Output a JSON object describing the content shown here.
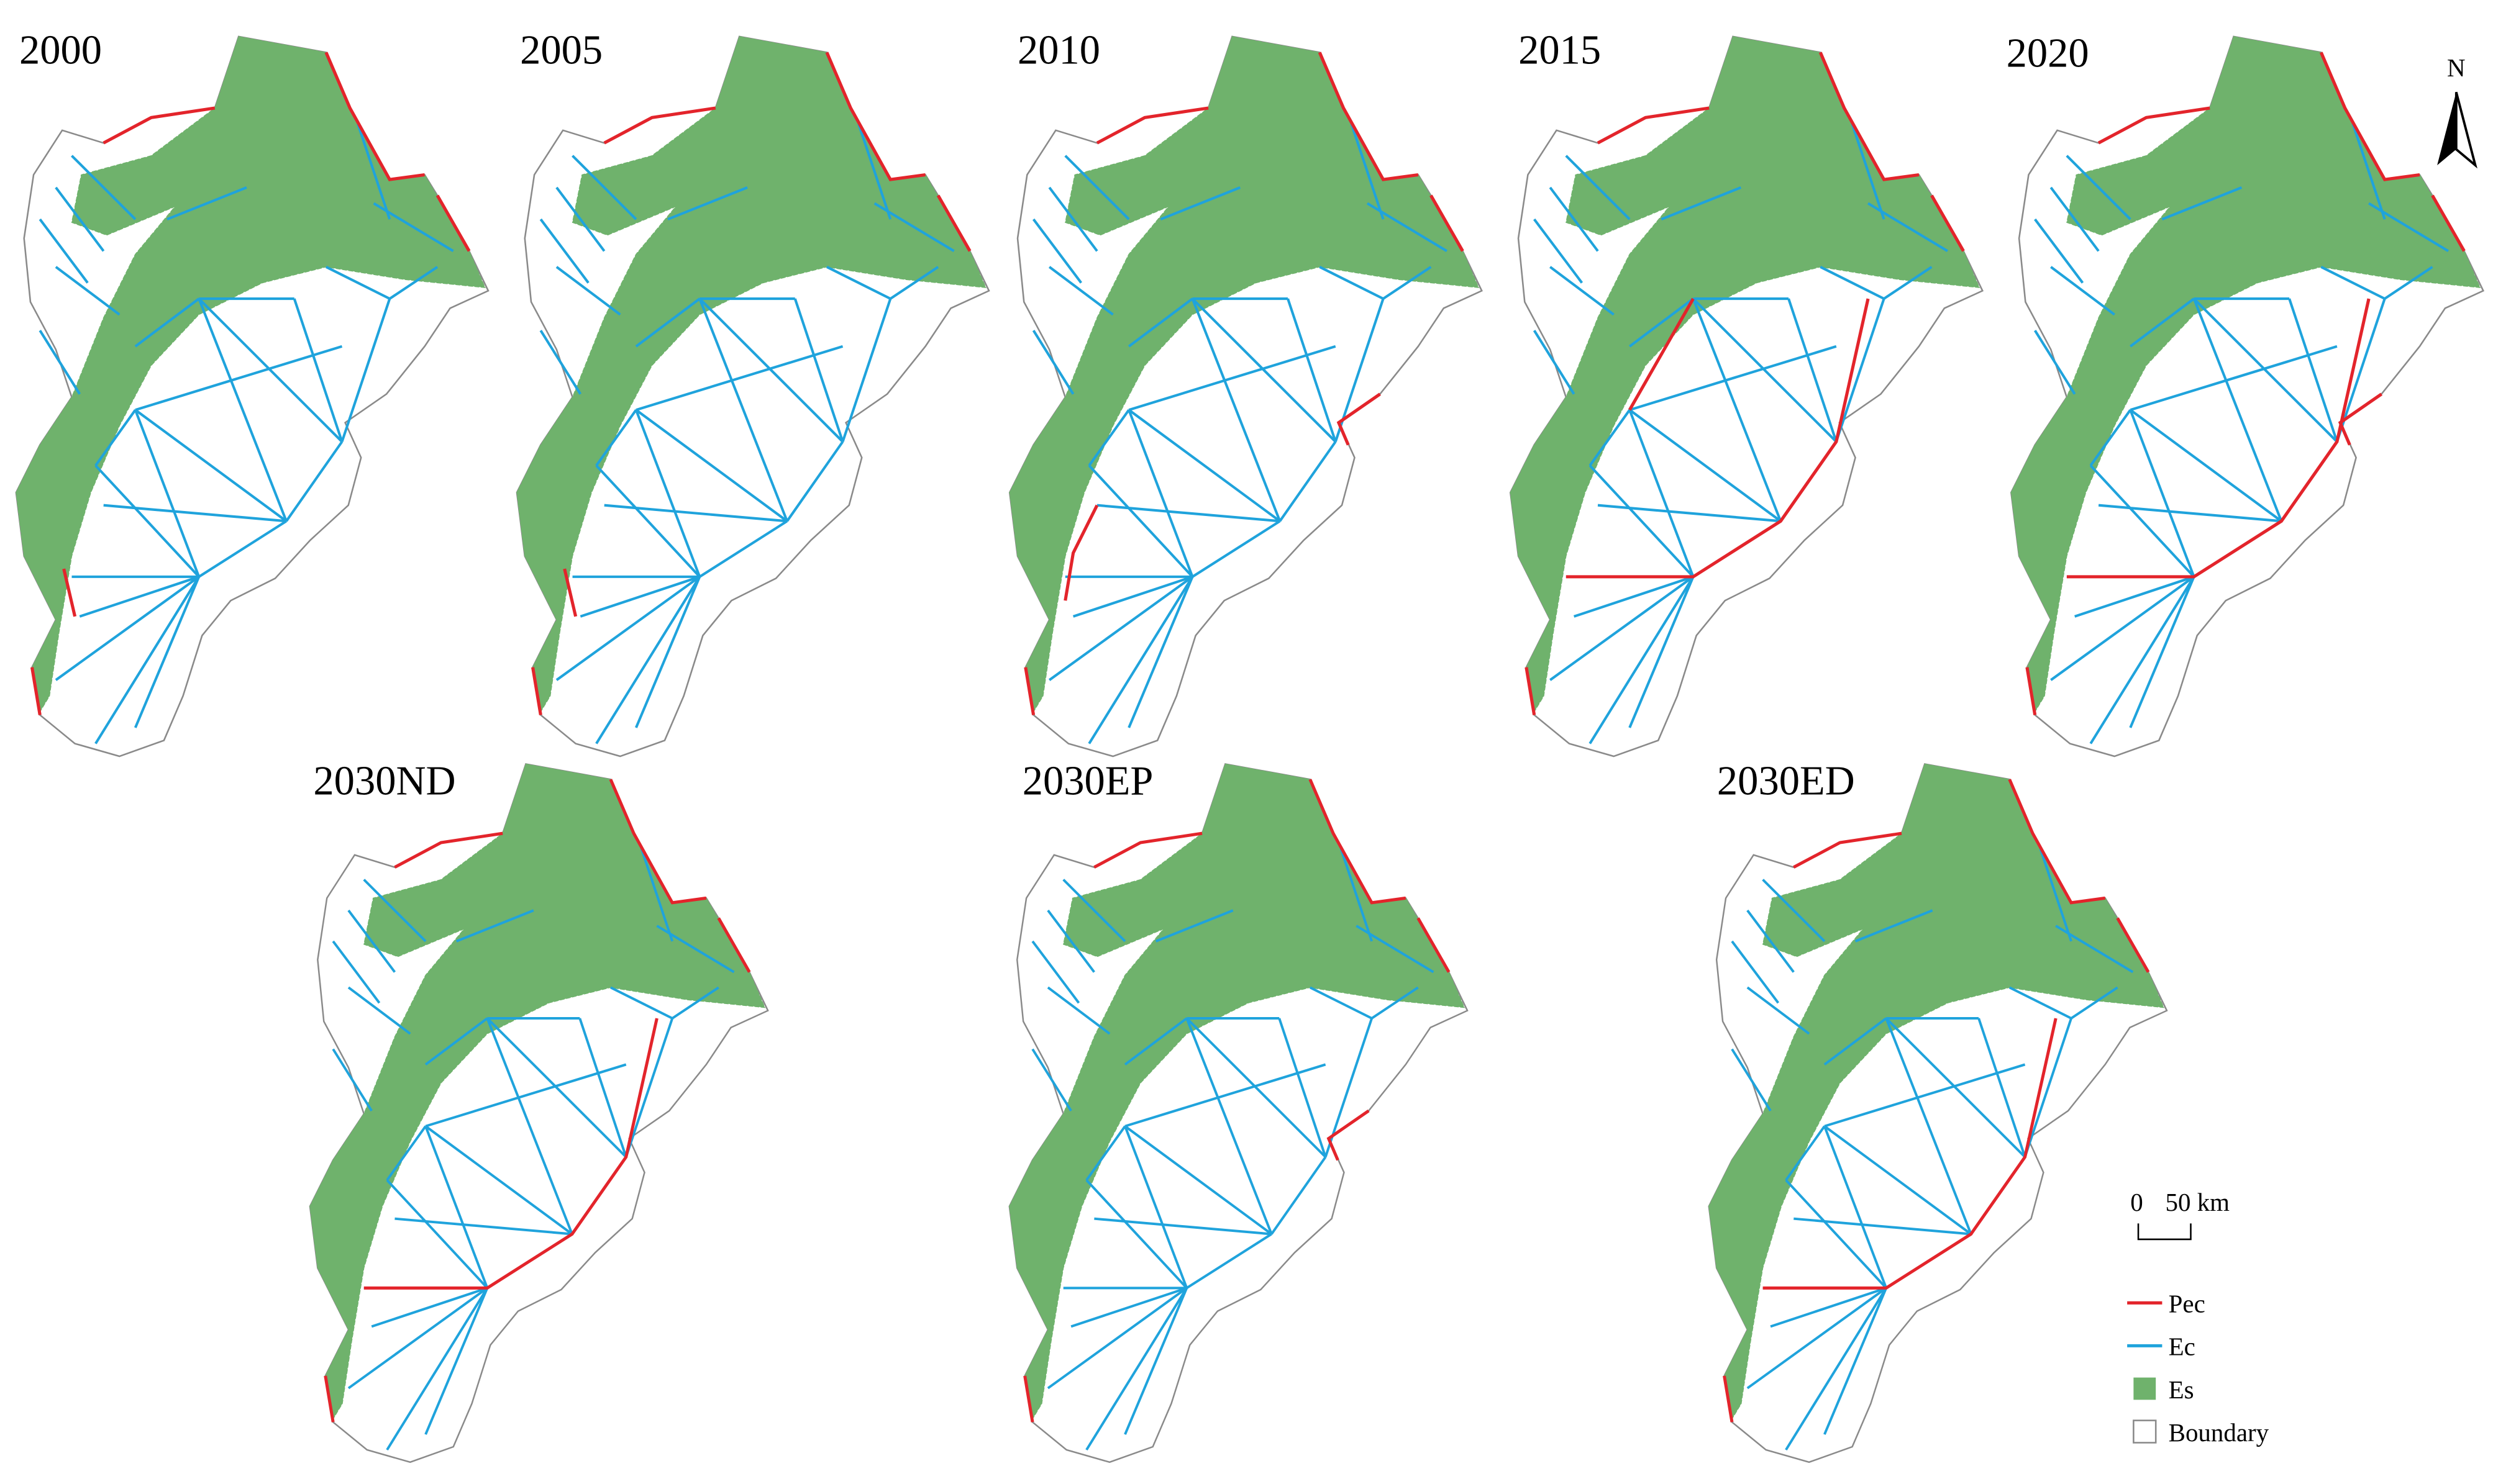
{
  "panels": [
    {
      "label": "2000"
    },
    {
      "label": "2005"
    },
    {
      "label": "2010"
    },
    {
      "label": "2015"
    },
    {
      "label": "2020"
    },
    {
      "label": "2030ND"
    },
    {
      "label": "2030EP"
    },
    {
      "label": "2030ED"
    }
  ],
  "legend": {
    "items": [
      {
        "label": "Pec",
        "color": "#e3242b",
        "symbol": "line"
      },
      {
        "label": "Ec",
        "color": "#1fa3dc",
        "symbol": "line"
      },
      {
        "label": "Es",
        "color": "#6fb26c",
        "symbol": "fill"
      },
      {
        "label": "Boundary",
        "color": "#8a8a8a",
        "symbol": "box"
      }
    ]
  },
  "scale_bar": {
    "start": "0",
    "end": "50 km"
  },
  "north_arrow": {
    "label": "N"
  }
}
